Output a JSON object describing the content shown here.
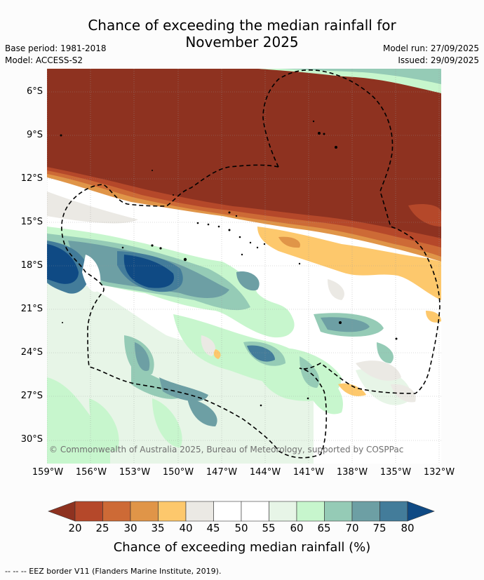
{
  "title_line1": "Chance of exceeding the median rainfall for",
  "title_line2": "November 2025",
  "base_period": "Base period: 1981-2018",
  "model": "Model: ACCESS-S2",
  "model_run": "Model run: 27/09/2025",
  "issued": "Issued: 29/09/2025",
  "copyright": "© Commonwealth of Australia 2025, Bureau of Meteorology, supported by COSPPac",
  "lat_labels": [
    "6°S",
    "9°S",
    "12°S",
    "15°S",
    "18°S",
    "21°S",
    "24°S",
    "27°S",
    "30°S"
  ],
  "lon_labels": [
    "159°W",
    "156°W",
    "153°W",
    "150°W",
    "147°W",
    "144°W",
    "141°W",
    "138°W",
    "135°W",
    "132°W"
  ],
  "colorbar": {
    "ticks": [
      "20",
      "25",
      "30",
      "35",
      "40",
      "45",
      "50",
      "55",
      "60",
      "65",
      "70",
      "75",
      "80"
    ],
    "colors": [
      "#8e3220",
      "#b5482a",
      "#cd6a36",
      "#e09548",
      "#fdc86c",
      "#ebe9e4",
      "#ffffff",
      "#ffffff",
      "#e7f5e7",
      "#c7f6cd",
      "#95cbb6",
      "#6d9fa4",
      "#437c9a",
      "#0f4a84"
    ],
    "label": "Chance of exceeding median rainfall (%)"
  },
  "footer": "--  --  -- EEZ border V11 (Flanders Marine Institute, 2019)."
}
